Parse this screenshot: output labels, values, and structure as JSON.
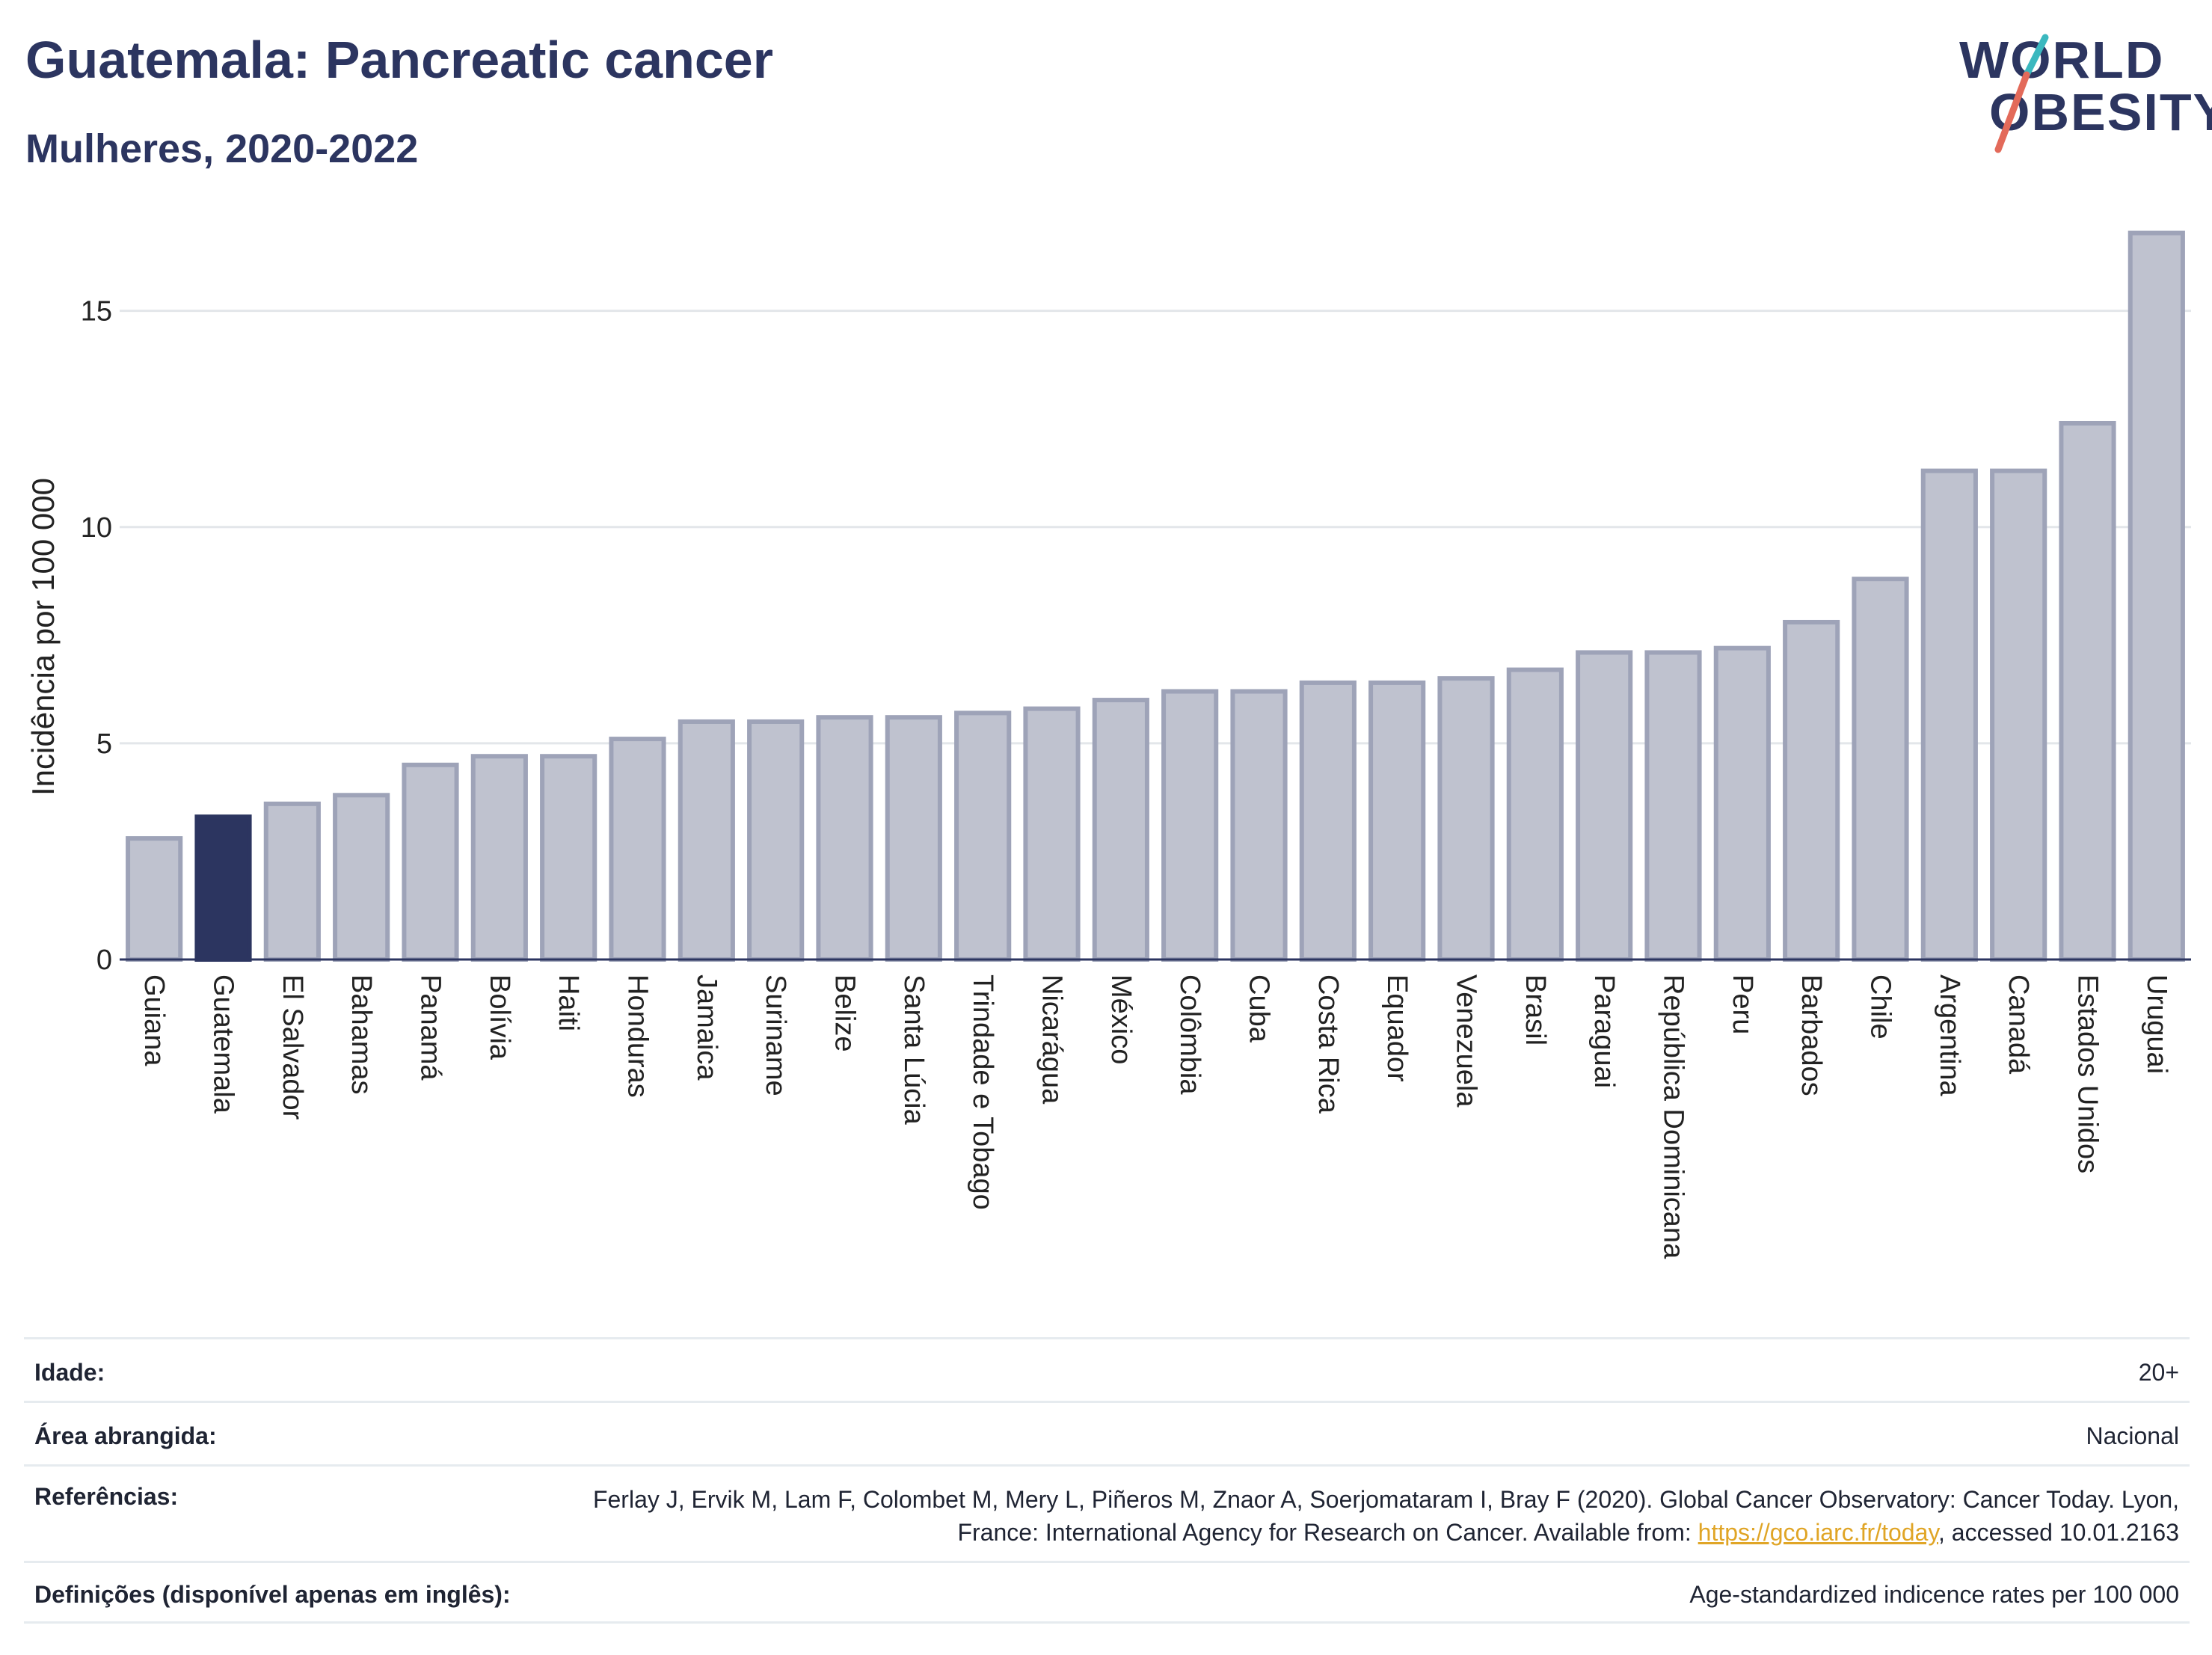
{
  "header": {
    "title": "Guatemala: Pancreatic cancer",
    "subtitle": "Mulheres, 2020-2022",
    "logo_line1": "WORLD",
    "logo_line2": "OBESITY"
  },
  "colors": {
    "bar": "#bfc2cf",
    "bar_border": "#9ea3b8",
    "highlight": "#2c3560",
    "grid": "#e3e6ea",
    "logo_accent_teal": "#3bb8bf",
    "logo_accent_coral": "#e36a5a"
  },
  "chart_data": {
    "type": "bar",
    "ylabel": "Incidência por 100 000",
    "xlabel": "",
    "ylim": [
      0,
      17
    ],
    "yticks": [
      0,
      5,
      10,
      15
    ],
    "grid": true,
    "highlight_category": "Guatemala",
    "categories": [
      "Guiana",
      "Guatemala",
      "El Salvador",
      "Bahamas",
      "Panamá",
      "Bolívia",
      "Haiti",
      "Honduras",
      "Jamaica",
      "Suriname",
      "Belize",
      "Santa Lúcia",
      "Trindade e Tobago",
      "Nicarágua",
      "México",
      "Colômbia",
      "Cuba",
      "Costa Rica",
      "Equador",
      "Venezuela",
      "Brasil",
      "Paraguai",
      "República Dominicana",
      "Peru",
      "Barbados",
      "Chile",
      "Argentina",
      "Canadá",
      "Estados Unidos",
      "Uruguai"
    ],
    "values": [
      2.8,
      3.3,
      3.6,
      3.8,
      4.5,
      4.7,
      4.7,
      5.1,
      5.5,
      5.5,
      5.6,
      5.6,
      5.7,
      5.8,
      6.0,
      6.2,
      6.2,
      6.4,
      6.4,
      6.5,
      6.7,
      7.1,
      7.1,
      7.2,
      7.8,
      8.8,
      11.3,
      11.3,
      12.4,
      16.8
    ]
  },
  "info_table": {
    "age_label": "Idade:",
    "age_value": "20+",
    "area_label": "Área abrangida:",
    "area_value": "Nacional",
    "refs_label": "Referências:",
    "refs_text": "Ferlay J, Ervik M, Lam F, Colombet M, Mery L, Piñeros M, Znaor A, Soerjomataram I, Bray F (2020). Global Cancer Observatory: Cancer Today. Lyon, France: International Agency for Research on Cancer. Available from: ",
    "refs_link": "https://gco.iarc.fr/today",
    "refs_suffix": ", accessed 10.01.2163",
    "defs_label": "Definições (disponível apenas em inglês):",
    "defs_value": "Age-standardized indicence rates per 100 000"
  }
}
